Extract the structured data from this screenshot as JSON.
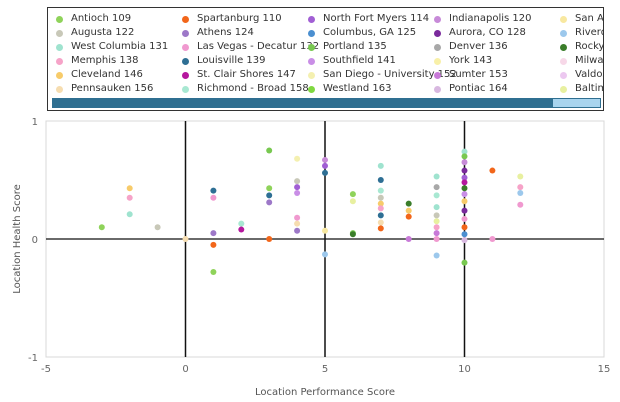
{
  "chart_data": {
    "type": "scatter",
    "xlabel": "Location Performance Score",
    "ylabel": "Location Health Score",
    "xlim": [
      -5,
      15
    ],
    "ylim": [
      -1,
      1
    ],
    "xticks": [
      "-5",
      "0",
      "5",
      "10",
      "15"
    ],
    "yticks": [
      "1",
      "0",
      "-1"
    ],
    "reference_lines_x": [
      0,
      5,
      10
    ],
    "reference_lines_y": [
      0
    ],
    "legend_position": "top",
    "series": [
      {
        "name": "Antioch 109",
        "color": "#8fd35a"
      },
      {
        "name": "Augusta 122",
        "color": "#c8c8b8"
      },
      {
        "name": "West Columbia 131",
        "color": "#9fe3cf"
      },
      {
        "name": "Memphis 138",
        "color": "#f6a3c8"
      },
      {
        "name": "Cleveland 146",
        "color": "#f7cb6a"
      },
      {
        "name": "Pennsauken 156",
        "color": "#f6ddb0"
      },
      {
        "name": "Spartanburg 110",
        "color": "#f2661a"
      },
      {
        "name": "Athens 124",
        "color": "#9d78c8"
      },
      {
        "name": "Las Vegas - Decatur 132",
        "color": "#f099cf"
      },
      {
        "name": "Louisville 139",
        "color": "#2e6f94"
      },
      {
        "name": "St. Clair Shores 147",
        "color": "#b5179e"
      },
      {
        "name": "Richmond - Broad 158",
        "color": "#a8e8d2"
      },
      {
        "name": "North Fort Myers 114",
        "color": "#a15fd4"
      },
      {
        "name": "Columbus, GA 125",
        "color": "#4b8fd0"
      },
      {
        "name": "Portland 135",
        "color": "#78c850"
      },
      {
        "name": "Southfield 141",
        "color": "#c98ee6"
      },
      {
        "name": "San Diego - University 152",
        "color": "#f4f0b0"
      },
      {
        "name": "Westland 163",
        "color": "#7fd840"
      },
      {
        "name": "Indianapolis 120",
        "color": "#c78ad8"
      },
      {
        "name": "Aurora, CO 128",
        "color": "#7a2a9c"
      },
      {
        "name": "Denver 136",
        "color": "#a8a8a8"
      },
      {
        "name": "York 143",
        "color": "#f8f0a8"
      },
      {
        "name": "Sumter 153",
        "color": "#c87ad8"
      },
      {
        "name": "Pontiac 164",
        "color": "#d8b8e0"
      },
      {
        "name": "San Anto",
        "color": "#f8e8a0"
      },
      {
        "name": "Riverdale",
        "color": "#9cc8ec"
      },
      {
        "name": "Rocky Mo",
        "color": "#3a7d2a"
      },
      {
        "name": "Milwauke",
        "color": "#f7d8e8"
      },
      {
        "name": "Valdosta",
        "color": "#ecc8f0"
      },
      {
        "name": "Baltimore",
        "color": "#e8f0a0"
      }
    ],
    "points": [
      {
        "x": -3,
        "y": 0.1,
        "s": 0
      },
      {
        "x": -2,
        "y": 0.43,
        "s": 4
      },
      {
        "x": -2,
        "y": 0.35,
        "s": 3
      },
      {
        "x": -2,
        "y": 0.21,
        "s": 2
      },
      {
        "x": -1,
        "y": 0.1,
        "s": 1
      },
      {
        "x": 0,
        "y": 0.0,
        "s": 5
      },
      {
        "x": 1,
        "y": 0.41,
        "s": 9
      },
      {
        "x": 1,
        "y": 0.35,
        "s": 8
      },
      {
        "x": 1,
        "y": 0.05,
        "s": 7
      },
      {
        "x": 1,
        "y": -0.05,
        "s": 6
      },
      {
        "x": 1,
        "y": -0.28,
        "s": 0
      },
      {
        "x": 2,
        "y": 0.13,
        "s": 11
      },
      {
        "x": 2,
        "y": 0.08,
        "s": 10
      },
      {
        "x": 3,
        "y": 0.75,
        "s": 14
      },
      {
        "x": 3,
        "y": 0.43,
        "s": 0
      },
      {
        "x": 3,
        "y": 0.37,
        "s": 9
      },
      {
        "x": 3,
        "y": 0.31,
        "s": 7
      },
      {
        "x": 3,
        "y": 0.0,
        "s": 6
      },
      {
        "x": 4,
        "y": 0.68,
        "s": 16
      },
      {
        "x": 4,
        "y": 0.49,
        "s": 1
      },
      {
        "x": 4,
        "y": 0.44,
        "s": 12
      },
      {
        "x": 4,
        "y": 0.39,
        "s": 15
      },
      {
        "x": 4,
        "y": 0.18,
        "s": 8
      },
      {
        "x": 4,
        "y": 0.13,
        "s": 5
      },
      {
        "x": 4,
        "y": 0.07,
        "s": 7
      },
      {
        "x": 5,
        "y": 0.67,
        "s": 18
      },
      {
        "x": 5,
        "y": 0.62,
        "s": 12
      },
      {
        "x": 5,
        "y": 0.56,
        "s": 9
      },
      {
        "x": 5,
        "y": 0.07,
        "s": 24
      },
      {
        "x": 5,
        "y": -0.13,
        "s": 25
      },
      {
        "x": 6,
        "y": 0.38,
        "s": 0
      },
      {
        "x": 6,
        "y": 0.32,
        "s": 29
      },
      {
        "x": 6,
        "y": 0.05,
        "s": 14
      },
      {
        "x": 6,
        "y": 0.04,
        "s": 26
      },
      {
        "x": 7,
        "y": 0.62,
        "s": 2
      },
      {
        "x": 7,
        "y": 0.5,
        "s": 9
      },
      {
        "x": 7,
        "y": 0.41,
        "s": 11
      },
      {
        "x": 7,
        "y": 0.35,
        "s": 1
      },
      {
        "x": 7,
        "y": 0.3,
        "s": 4
      },
      {
        "x": 7,
        "y": 0.26,
        "s": 3
      },
      {
        "x": 7,
        "y": 0.2,
        "s": 9
      },
      {
        "x": 7,
        "y": 0.14,
        "s": 5
      },
      {
        "x": 7,
        "y": 0.09,
        "s": 6
      },
      {
        "x": 8,
        "y": 0.3,
        "s": 26
      },
      {
        "x": 8,
        "y": 0.24,
        "s": 4
      },
      {
        "x": 8,
        "y": 0.19,
        "s": 6
      },
      {
        "x": 8,
        "y": 0.0,
        "s": 22
      },
      {
        "x": 9,
        "y": 0.53,
        "s": 2
      },
      {
        "x": 9,
        "y": 0.44,
        "s": 20
      },
      {
        "x": 9,
        "y": 0.37,
        "s": 11
      },
      {
        "x": 9,
        "y": 0.27,
        "s": 2
      },
      {
        "x": 9,
        "y": 0.2,
        "s": 1
      },
      {
        "x": 9,
        "y": 0.15,
        "s": 29
      },
      {
        "x": 9,
        "y": 0.1,
        "s": 3
      },
      {
        "x": 9,
        "y": 0.05,
        "s": 22
      },
      {
        "x": 9,
        "y": 0.0,
        "s": 8
      },
      {
        "x": 9,
        "y": -0.14,
        "s": 25
      },
      {
        "x": 10,
        "y": 0.74,
        "s": 2
      },
      {
        "x": 10,
        "y": 0.7,
        "s": 14
      },
      {
        "x": 10,
        "y": 0.65,
        "s": 18
      },
      {
        "x": 10,
        "y": 0.58,
        "s": 19
      },
      {
        "x": 10,
        "y": 0.52,
        "s": 12
      },
      {
        "x": 10,
        "y": 0.48,
        "s": 10
      },
      {
        "x": 10,
        "y": 0.43,
        "s": 26
      },
      {
        "x": 10,
        "y": 0.38,
        "s": 15
      },
      {
        "x": 10,
        "y": 0.32,
        "s": 4
      },
      {
        "x": 10,
        "y": 0.24,
        "s": 19
      },
      {
        "x": 10,
        "y": 0.17,
        "s": 8
      },
      {
        "x": 10,
        "y": 0.1,
        "s": 6
      },
      {
        "x": 10,
        "y": 0.04,
        "s": 13
      },
      {
        "x": 10,
        "y": -0.01,
        "s": 23
      },
      {
        "x": 10,
        "y": -0.2,
        "s": 14
      },
      {
        "x": 11,
        "y": 0.58,
        "s": 6
      },
      {
        "x": 11,
        "y": 0.0,
        "s": 8
      },
      {
        "x": 12,
        "y": 0.53,
        "s": 29
      },
      {
        "x": 12,
        "y": 0.44,
        "s": 3
      },
      {
        "x": 12,
        "y": 0.39,
        "s": 25
      },
      {
        "x": 12,
        "y": 0.29,
        "s": 8
      }
    ]
  }
}
